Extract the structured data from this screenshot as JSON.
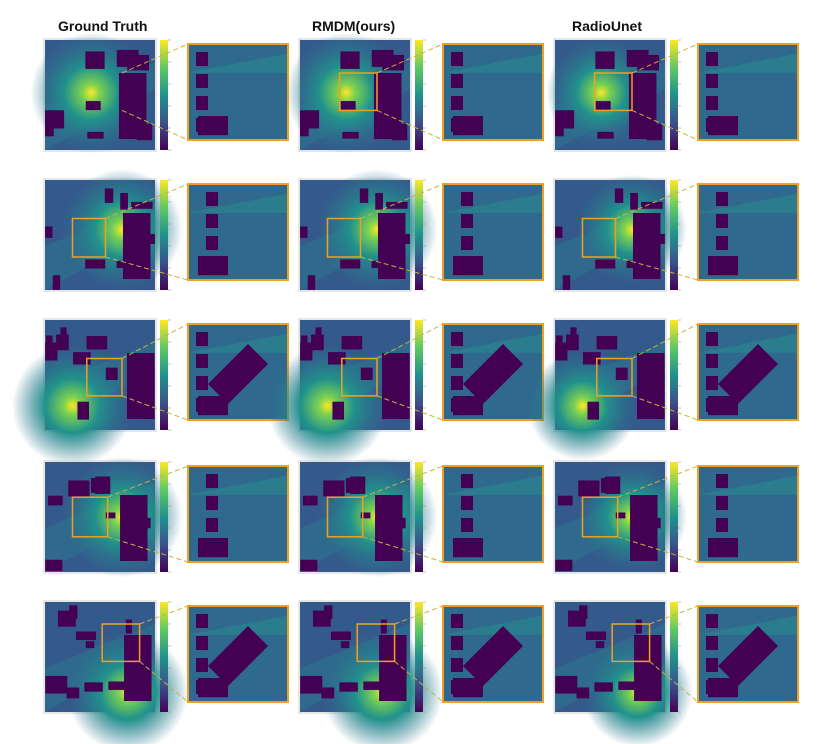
{
  "figure": {
    "columns": [
      {
        "label": "Ground Truth"
      },
      {
        "label": "RMDM(ours)"
      },
      {
        "label": "RadioUnet"
      }
    ],
    "row_count": 5,
    "colormap": "viridis",
    "colors": {
      "low": "#440154",
      "mid": "#21918c",
      "high": "#fde725",
      "zoom_box": "#f0a020"
    }
  }
}
